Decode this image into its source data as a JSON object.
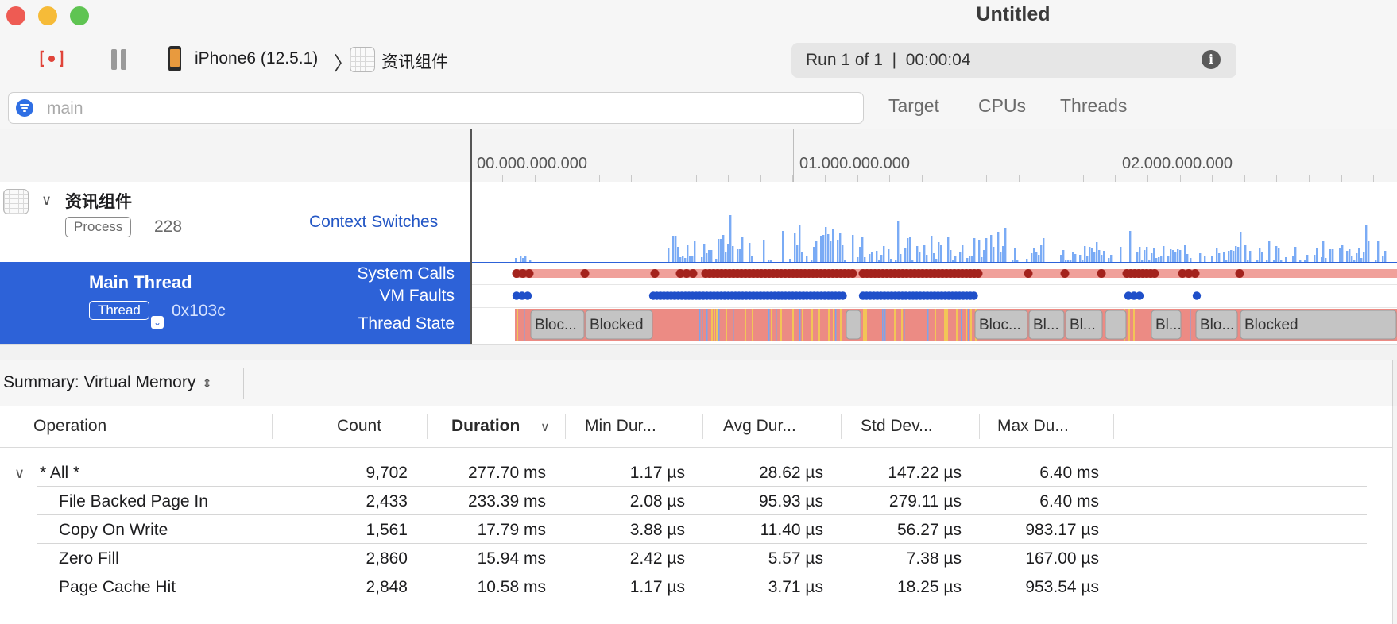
{
  "window": {
    "title": "Untitled",
    "traffic_lights": {
      "close": "#ee5b53",
      "minimize": "#f6bb38",
      "zoom": "#5fc452"
    }
  },
  "toolbar": {
    "device": "iPhone6 (12.5.1)",
    "app": "资讯组件",
    "status": "Run 1 of 1  |  00:00:04",
    "record_icon": "record-icon",
    "pause_icon": "pause-icon",
    "info_icon": "info-icon"
  },
  "filter": {
    "placeholder": "main",
    "tabs": [
      "Target",
      "CPUs",
      "Threads"
    ]
  },
  "ruler": {
    "labels": [
      "00.000.000.000",
      "01.000.000.000",
      "02.000.000.000"
    ]
  },
  "process": {
    "name": "资讯组件",
    "badge": "Process",
    "pid": "228",
    "track_label": "Context Switches"
  },
  "thread": {
    "name": "Main Thread",
    "badge": "Thread",
    "tid": "0x103c",
    "track_labels": [
      "System Calls",
      "VM Faults",
      "Thread State"
    ],
    "blocked_segments": [
      "Bloc...",
      "Blocked",
      "Bloc...",
      "Bl...",
      "Bl...",
      "Bl...",
      "Blo...",
      "Blocked"
    ]
  },
  "colors": {
    "selection": "#2d62d8",
    "syscall_band": "#f0a09a",
    "syscall_dot": "#a3231d",
    "vmfault_dot": "#1f4fc9",
    "running": "#ec8b84",
    "blocked": "#c4c4c4",
    "context_bar": "#7aabf5"
  },
  "summary": {
    "label": "Summary: Virtual Memory"
  },
  "table": {
    "columns": [
      "Operation",
      "Count",
      "Duration",
      "Min Dur...",
      "Avg Dur...",
      "Std Dev...",
      "Max Du..."
    ],
    "rows": [
      {
        "operation": "* All *",
        "count": "9,702",
        "duration": "277.70 ms",
        "min": "1.17 µs",
        "avg": "28.62 µs",
        "std": "147.22 µs",
        "max": "6.40 ms"
      },
      {
        "operation": "File Backed Page In",
        "count": "2,433",
        "duration": "233.39 ms",
        "min": "2.08 µs",
        "avg": "95.93 µs",
        "std": "279.11 µs",
        "max": "6.40 ms"
      },
      {
        "operation": "Copy On Write",
        "count": "1,561",
        "duration": "17.79 ms",
        "min": "3.88 µs",
        "avg": "11.40 µs",
        "std": "56.27 µs",
        "max": "983.17 µs"
      },
      {
        "operation": "Zero Fill",
        "count": "2,860",
        "duration": "15.94 ms",
        "min": "2.42 µs",
        "avg": "5.57 µs",
        "std": "7.38 µs",
        "max": "167.00 µs"
      },
      {
        "operation": "Page Cache Hit",
        "count": "2,848",
        "duration": "10.58 ms",
        "min": "1.17 µs",
        "avg": "3.71 µs",
        "std": "18.25 µs",
        "max": "953.54 µs"
      }
    ]
  }
}
